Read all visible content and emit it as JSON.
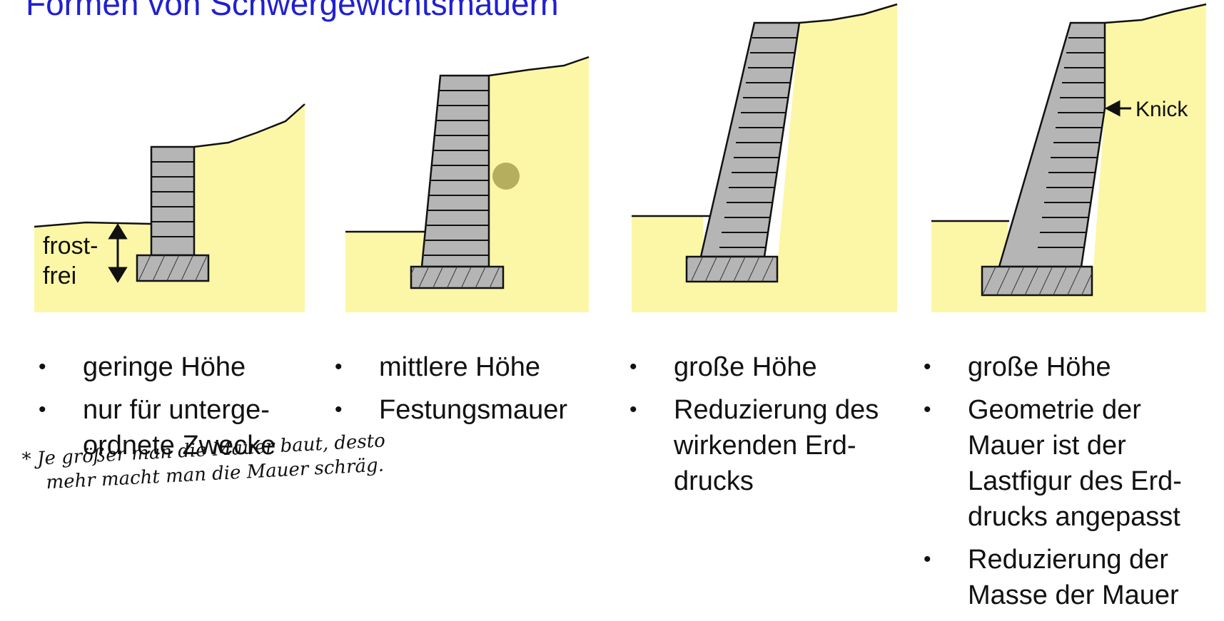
{
  "title": "Formen von Schwergewichtsmauern",
  "colors": {
    "title": "#2020d0",
    "soil": "#fbf7a6",
    "wall": "#b5b5b5",
    "marker": "#b5ae5e"
  },
  "diagram1": {
    "label_line1": "frost-",
    "label_line2": "frei"
  },
  "diagram4": {
    "annotation": "Knick"
  },
  "columns": [
    {
      "bullets": [
        "geringe Höhe",
        "nur für unterge-\nordnete Zwecke"
      ]
    },
    {
      "bullets": [
        "mittlere Höhe",
        "Festungsmauer"
      ]
    },
    {
      "bullets": [
        "große Höhe",
        "Reduzierung des\nwirkenden Erd-\ndrucks"
      ]
    },
    {
      "bullets": [
        "große Höhe",
        "Geometrie der\nMauer ist der\nLastfigur des Erd-\ndrucks angepasst",
        "Reduzierung der\nMasse der Mauer"
      ]
    }
  ],
  "note": {
    "line1": "* Je größer man die Mauer baut, desto",
    "line2": "mehr macht man die Mauer schräg."
  }
}
